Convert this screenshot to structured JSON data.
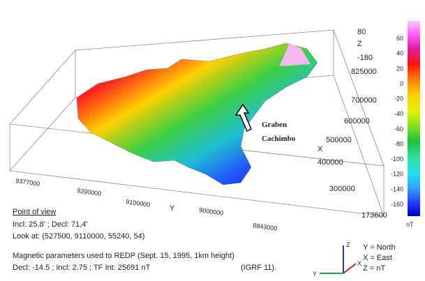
{
  "z_axis": {
    "labels": [
      "80",
      "Z",
      "-180"
    ]
  },
  "x_axis": {
    "labels": [
      "825000",
      "700000",
      "600000",
      "500000",
      "X",
      "400000",
      "300000",
      "173600"
    ]
  },
  "y_axis": {
    "labels": [
      "9377000",
      "9200000",
      "9100000",
      "Y",
      "9000000",
      "8843000"
    ]
  },
  "annotation": {
    "lines": [
      "Graben",
      "Cachimbo"
    ]
  },
  "colorbar": {
    "labels": [
      "60",
      "40",
      "20",
      "0",
      "-20",
      "-40",
      "-60",
      "-80",
      "-100",
      "-120",
      "-140",
      "-160"
    ],
    "unit": "nT"
  },
  "info": {
    "title": "Point of view",
    "lines": [
      "Incl: 25,8' ;  Decl: 71,4'",
      "Look at: (527500, 9110000, 55240, 54)",
      "Magnetic parameters used to REDP (Sept. 15, 1995, 1km height)",
      "Decl: -14.5  ; Incl: 2.75  ; TF Int: 25691 nT"
    ],
    "note": "(IGRF 11)."
  },
  "orientation": {
    "icon_labels": [
      "Z",
      "Y",
      "X"
    ],
    "legend": [
      "Y = North",
      "X = East",
      "Z = nT"
    ]
  }
}
